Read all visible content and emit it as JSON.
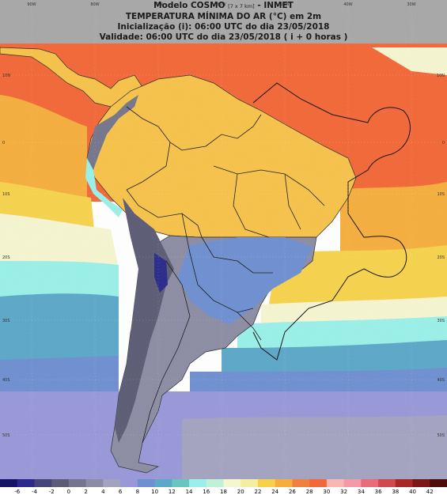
{
  "header": {
    "model": "Modelo COSMO",
    "resolution": "[7 x 7 km]",
    "agency": "- INMET",
    "variable": "TEMPERATURA MÍNIMA DO AR (°C) em 2m",
    "init": "Inicialização (i): 06:00 UTC do dia 23/05/2018",
    "valid": "Validade: 06:00 UTC do dia 23/05/2018 ( i + 0 horas )"
  },
  "colorbar": {
    "ticks": [
      "-6",
      "-4",
      "-2",
      "0",
      "2",
      "4",
      "6",
      "8",
      "10",
      "12",
      "14",
      "16",
      "18",
      "20",
      "22",
      "24",
      "26",
      "28",
      "30",
      "32",
      "34",
      "36",
      "38",
      "40",
      "42"
    ],
    "colors": [
      "#151565",
      "#2a2a8c",
      "#45457a",
      "#5c5c75",
      "#75758c",
      "#8c8ca4",
      "#a3a3c0",
      "#9898d8",
      "#6f8fd0",
      "#5da7c8",
      "#68c5c0",
      "#9af0e8",
      "#bff0d8",
      "#f5f5d0",
      "#f3efa0",
      "#f6d24c",
      "#f5ae3e",
      "#f08040",
      "#f26838",
      "#f7b8b4",
      "#f29aa8",
      "#e86d7a",
      "#d24850",
      "#a82828",
      "#7a1818",
      "#4a0c0c"
    ]
  },
  "grid_labels": {
    "top": [
      "90W",
      "80W",
      "70W",
      "60W",
      "50W",
      "40W",
      "30W"
    ],
    "left": [
      "10N",
      "0",
      "10S",
      "20S",
      "30S",
      "40S",
      "50S"
    ],
    "right": [
      "10N",
      "0",
      "10S",
      "20S",
      "30S",
      "40S",
      "50S"
    ]
  },
  "theme": {
    "ocean_warm": "#f26838",
    "ocean_orange": "#f5ae3e",
    "ocean_yellow": "#f6d24c",
    "ocean_cream": "#f5f5d0",
    "ocean_aqua": "#9af0e8",
    "ocean_teal": "#5da7c8",
    "ocean_blue": "#6f8fd0",
    "ocean_violet": "#9898d8",
    "land_warm": "#f6c24a",
    "land_cold": "#8c8ca4",
    "andes": "#5c5c75",
    "top_grey": "#a0a0a0"
  }
}
